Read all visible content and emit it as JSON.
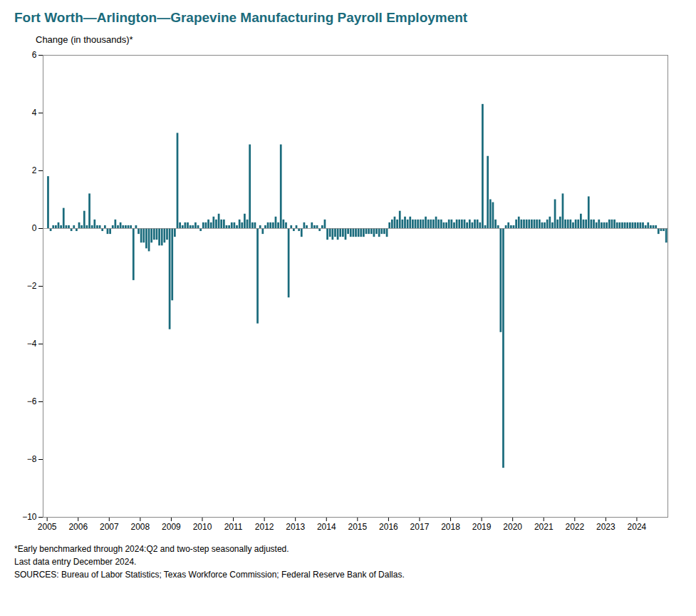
{
  "chart_data": {
    "type": "bar",
    "title": "Fort Worth—Arlington—Grapevine Manufacturing Payroll Employment",
    "ylabel": "Change (in thousands)*",
    "annotations": [
      "*Early benchmarked through 2024:Q2  and two-step seasonally adjusted.",
      "Last data entry December 2024.",
      "SOURCES:  Bureau of Labor Statistics;  Texas Workforce Commission;  Federal Reserve Bank of Dallas."
    ],
    "color": "#1a6b7c",
    "xlim": [
      2004.87,
      2025.0
    ],
    "xticks": [
      2005,
      2006,
      2007,
      2008,
      2009,
      2010,
      2011,
      2012,
      2013,
      2014,
      2015,
      2016,
      2017,
      2018,
      2019,
      2020,
      2021,
      2022,
      2023,
      2024
    ],
    "ylim": [
      -10,
      6
    ],
    "yticks": [
      -10,
      -8,
      -6,
      -4,
      -2,
      0,
      2,
      4,
      6
    ],
    "grid": false,
    "x": [
      2005.041666666667,
      2005.125,
      2005.208333333333,
      2005.291666666667,
      2005.375,
      2005.458333333333,
      2005.541666666667,
      2005.625,
      2005.708333333333,
      2005.791666666667,
      2005.875,
      2005.958333333333,
      2006.041666666667,
      2006.125,
      2006.208333333333,
      2006.291666666667,
      2006.375,
      2006.458333333333,
      2006.541666666667,
      2006.625,
      2006.708333333333,
      2006.791666666667,
      2006.875,
      2006.958333333333,
      2007.041666666667,
      2007.125,
      2007.208333333333,
      2007.291666666667,
      2007.375,
      2007.458333333333,
      2007.541666666667,
      2007.625,
      2007.708333333333,
      2007.791666666667,
      2007.875,
      2007.958333333333,
      2008.041666666667,
      2008.125,
      2008.208333333333,
      2008.291666666667,
      2008.375,
      2008.458333333333,
      2008.541666666667,
      2008.625,
      2008.708333333333,
      2008.791666666667,
      2008.875,
      2008.958333333333,
      2009.041666666667,
      2009.125,
      2009.208333333333,
      2009.291666666667,
      2009.375,
      2009.458333333333,
      2009.541666666667,
      2009.625,
      2009.708333333333,
      2009.791666666667,
      2009.875,
      2009.958333333333,
      2010.041666666667,
      2010.125,
      2010.208333333333,
      2010.291666666667,
      2010.375,
      2010.458333333333,
      2010.541666666667,
      2010.625,
      2010.708333333333,
      2010.791666666667,
      2010.875,
      2010.958333333333,
      2011.041666666667,
      2011.125,
      2011.208333333333,
      2011.291666666667,
      2011.375,
      2011.458333333333,
      2011.541666666667,
      2011.625,
      2011.708333333333,
      2011.791666666667,
      2011.875,
      2011.958333333333,
      2012.041666666667,
      2012.125,
      2012.208333333333,
      2012.291666666667,
      2012.375,
      2012.458333333333,
      2012.541666666667,
      2012.625,
      2012.708333333333,
      2012.791666666667,
      2012.875,
      2012.958333333333,
      2013.041666666667,
      2013.125,
      2013.208333333333,
      2013.291666666667,
      2013.375,
      2013.458333333333,
      2013.541666666667,
      2013.625,
      2013.708333333333,
      2013.791666666667,
      2013.875,
      2013.958333333333,
      2014.041666666667,
      2014.125,
      2014.208333333333,
      2014.291666666667,
      2014.375,
      2014.458333333333,
      2014.541666666667,
      2014.625,
      2014.708333333333,
      2014.791666666667,
      2014.875,
      2014.958333333333,
      2015.041666666667,
      2015.125,
      2015.208333333333,
      2015.291666666667,
      2015.375,
      2015.458333333333,
      2015.541666666667,
      2015.625,
      2015.708333333333,
      2015.791666666667,
      2015.875,
      2015.958333333333,
      2016.041666666667,
      2016.125,
      2016.208333333333,
      2016.291666666667,
      2016.375,
      2016.458333333333,
      2016.541666666667,
      2016.625,
      2016.708333333333,
      2016.791666666667,
      2016.875,
      2016.958333333333,
      2017.041666666667,
      2017.125,
      2017.208333333333,
      2017.291666666667,
      2017.375,
      2017.458333333333,
      2017.541666666667,
      2017.625,
      2017.708333333333,
      2017.791666666667,
      2017.875,
      2017.958333333333,
      2018.041666666667,
      2018.125,
      2018.208333333333,
      2018.291666666667,
      2018.375,
      2018.458333333333,
      2018.541666666667,
      2018.625,
      2018.708333333333,
      2018.791666666667,
      2018.875,
      2018.958333333333,
      2019.041666666667,
      2019.125,
      2019.208333333333,
      2019.291666666667,
      2019.375,
      2019.458333333333,
      2019.541666666667,
      2019.625,
      2019.708333333333,
      2019.791666666667,
      2019.875,
      2019.958333333333,
      2020.041666666667,
      2020.125,
      2020.208333333333,
      2020.291666666667,
      2020.375,
      2020.458333333333,
      2020.541666666667,
      2020.625,
      2020.708333333333,
      2020.791666666667,
      2020.875,
      2020.958333333333,
      2021.041666666667,
      2021.125,
      2021.208333333333,
      2021.291666666667,
      2021.375,
      2021.458333333333,
      2021.541666666667,
      2021.625,
      2021.708333333333,
      2021.791666666667,
      2021.875,
      2021.958333333333,
      2022.041666666667,
      2022.125,
      2022.208333333333,
      2022.291666666667,
      2022.375,
      2022.458333333333,
      2022.541666666667,
      2022.625,
      2022.708333333333,
      2022.791666666667,
      2022.875,
      2022.958333333333,
      2023.041666666667,
      2023.125,
      2023.208333333333,
      2023.291666666667,
      2023.375,
      2023.458333333333,
      2023.541666666667,
      2023.625,
      2023.708333333333,
      2023.791666666667,
      2023.875,
      2023.958333333333,
      2024.041666666667,
      2024.125,
      2024.208333333333,
      2024.291666666667,
      2024.375,
      2024.458333333333,
      2024.541666666667,
      2024.625,
      2024.708333333333,
      2024.791666666667,
      2024.875,
      2024.958333333333
    ],
    "values": [
      1.8,
      -0.1,
      0.1,
      0.1,
      0.2,
      0.1,
      0.7,
      0.1,
      0.1,
      -0.1,
      0.1,
      -0.1,
      0.2,
      0.1,
      0.6,
      0.1,
      1.2,
      0.1,
      0.3,
      0.1,
      0.1,
      -0.1,
      0.1,
      -0.2,
      -0.2,
      0.1,
      0.3,
      0.1,
      0.2,
      0.1,
      0.1,
      0.1,
      0.1,
      -1.8,
      0.1,
      -0.2,
      -0.5,
      -0.5,
      -0.7,
      -0.8,
      -0.5,
      -0.4,
      -0.4,
      -0.6,
      -0.6,
      -0.5,
      -0.4,
      -3.5,
      -2.5,
      -0.3,
      3.3,
      0.2,
      0.1,
      0.2,
      0.2,
      0.1,
      0.1,
      0.2,
      0.1,
      -0.1,
      0.2,
      0.2,
      0.3,
      0.2,
      0.4,
      0.3,
      0.5,
      0.3,
      0.3,
      0.1,
      0.1,
      0.2,
      0.2,
      0.1,
      0.3,
      0.2,
      0.5,
      0.3,
      2.9,
      0.2,
      0.2,
      -3.3,
      0.1,
      -0.2,
      0.1,
      0.2,
      0.2,
      0.2,
      0.4,
      0.2,
      2.9,
      0.3,
      0.2,
      -2.4,
      0.1,
      -0.1,
      0.1,
      -0.1,
      -0.3,
      0.2,
      0.1,
      0.0,
      0.2,
      0.1,
      0.1,
      -0.1,
      0.1,
      0.3,
      -0.4,
      -0.3,
      -0.4,
      -0.3,
      -0.4,
      -0.3,
      -0.3,
      -0.4,
      -0.2,
      -0.3,
      -0.3,
      -0.3,
      -0.3,
      -0.3,
      -0.3,
      -0.2,
      -0.2,
      -0.2,
      -0.3,
      -0.2,
      -0.3,
      -0.2,
      -0.2,
      -0.3,
      0.2,
      0.3,
      0.4,
      0.3,
      0.6,
      0.3,
      0.4,
      0.3,
      0.4,
      0.3,
      0.3,
      0.3,
      0.3,
      0.3,
      0.4,
      0.3,
      0.3,
      0.3,
      0.4,
      0.3,
      0.3,
      0.2,
      0.2,
      0.3,
      0.3,
      0.2,
      0.3,
      0.3,
      0.3,
      0.3,
      0.2,
      0.3,
      0.2,
      0.3,
      0.3,
      0.2,
      4.3,
      0.1,
      2.5,
      1.0,
      0.9,
      0.3,
      0.1,
      -3.6,
      -8.3,
      0.1,
      0.2,
      0.1,
      0.1,
      0.3,
      0.4,
      0.3,
      0.3,
      0.3,
      0.3,
      0.3,
      0.3,
      0.3,
      0.3,
      0.2,
      0.2,
      0.3,
      0.4,
      0.2,
      1.0,
      0.3,
      0.4,
      1.2,
      0.3,
      0.3,
      0.3,
      0.2,
      0.3,
      0.3,
      0.5,
      0.3,
      0.3,
      1.1,
      0.3,
      0.3,
      0.2,
      0.3,
      0.2,
      0.2,
      0.2,
      0.3,
      0.3,
      0.3,
      0.2,
      0.2,
      0.2,
      0.2,
      0.2,
      0.2,
      0.2,
      0.2,
      0.2,
      0.2,
      0.2,
      0.1,
      0.2,
      0.1,
      0.1,
      0.1,
      -0.2,
      -0.1,
      -0.1,
      -0.5
    ]
  }
}
